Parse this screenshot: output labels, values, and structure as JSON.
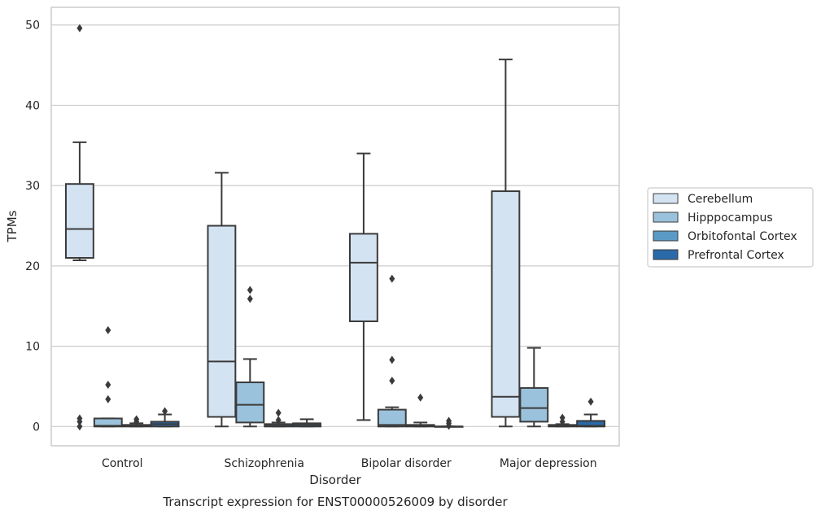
{
  "chart_data": {
    "type": "box",
    "title": "",
    "caption": "Transcript expression for ENST00000526009 by disorder",
    "xlabel": "Disorder",
    "ylabel": "TPMs",
    "ylim": [
      -2.4,
      52.2
    ],
    "yticks": [
      0,
      10,
      20,
      30,
      40,
      50
    ],
    "grid": true,
    "legend_position": "right",
    "categories": [
      "Control",
      "Schizophrenia",
      "Bipolar disorder",
      "Major depression"
    ],
    "series": [
      {
        "name": "Cerebellum",
        "color": "#d4e3f2",
        "boxes": [
          {
            "whisker_low": 20.7,
            "q1": 21.0,
            "median": 24.6,
            "q3": 30.2,
            "whisker_high": 35.4,
            "outliers": [
              49.6,
              1.0,
              0.6,
              0.0
            ]
          },
          {
            "whisker_low": 0.0,
            "q1": 1.2,
            "median": 8.1,
            "q3": 25.0,
            "whisker_high": 31.6,
            "outliers": []
          },
          {
            "whisker_low": 0.8,
            "q1": 13.1,
            "median": 20.4,
            "q3": 24.0,
            "whisker_high": 34.0,
            "outliers": []
          },
          {
            "whisker_low": 0.0,
            "q1": 1.2,
            "median": 3.7,
            "q3": 29.3,
            "whisker_high": 45.7,
            "outliers": []
          }
        ]
      },
      {
        "name": "Hipppocampus",
        "color": "#9ac2dc",
        "boxes": [
          {
            "whisker_low": 0.0,
            "q1": 0.0,
            "median": 0.1,
            "q3": 1.0,
            "whisker_high": 1.0,
            "outliers": [
              12.0,
              5.2,
              3.4
            ]
          },
          {
            "whisker_low": 0.0,
            "q1": 0.5,
            "median": 2.7,
            "q3": 5.5,
            "whisker_high": 8.4,
            "outliers": [
              17.0,
              15.9
            ]
          },
          {
            "whisker_low": 0.0,
            "q1": 0.0,
            "median": 0.2,
            "q3": 2.1,
            "whisker_high": 2.4,
            "outliers": [
              18.4,
              8.3,
              5.7
            ]
          },
          {
            "whisker_low": 0.0,
            "q1": 0.6,
            "median": 2.3,
            "q3": 4.8,
            "whisker_high": 9.8,
            "outliers": []
          }
        ]
      },
      {
        "name": "Orbitofontal Cortex",
        "color": "#5a9ac6",
        "boxes": [
          {
            "whisker_low": 0.0,
            "q1": 0.0,
            "median": 0.1,
            "q3": 0.2,
            "whisker_high": 0.4,
            "outliers": [
              0.9,
              0.6
            ]
          },
          {
            "whisker_low": 0.0,
            "q1": 0.0,
            "median": 0.1,
            "q3": 0.3,
            "whisker_high": 0.5,
            "outliers": [
              1.7,
              0.8
            ]
          },
          {
            "whisker_low": 0.0,
            "q1": 0.0,
            "median": 0.1,
            "q3": 0.2,
            "whisker_high": 0.5,
            "outliers": [
              3.6
            ]
          },
          {
            "whisker_low": 0.0,
            "q1": 0.0,
            "median": 0.1,
            "q3": 0.2,
            "whisker_high": 0.3,
            "outliers": [
              1.1,
              0.6
            ]
          }
        ]
      },
      {
        "name": "Prefrontal Cortex",
        "color": "#2b6aa8",
        "boxes": [
          {
            "whisker_low": 0.0,
            "q1": 0.0,
            "median": 0.3,
            "q3": 0.6,
            "whisker_high": 1.5,
            "outliers": [
              1.9
            ]
          },
          {
            "whisker_low": 0.0,
            "q1": 0.0,
            "median": 0.2,
            "q3": 0.4,
            "whisker_high": 0.9,
            "outliers": []
          },
          {
            "whisker_low": 0.0,
            "q1": 0.0,
            "median": 0.0,
            "q3": 0.0,
            "whisker_high": 0.0,
            "outliers": [
              0.7,
              0.4,
              0.1
            ]
          },
          {
            "whisker_low": 0.0,
            "q1": 0.0,
            "median": 0.1,
            "q3": 0.7,
            "whisker_high": 1.5,
            "outliers": [
              3.1
            ]
          }
        ]
      }
    ]
  }
}
